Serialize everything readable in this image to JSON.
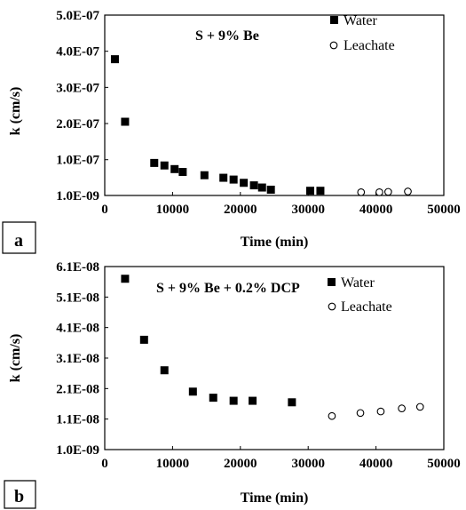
{
  "chart_data": [
    {
      "type": "scatter",
      "panel_label": "a",
      "annotation": "S + 9% Be",
      "xlabel": "Time (min)",
      "ylabel": "k (cm/s)",
      "xlim": [
        0,
        50000
      ],
      "ylim": [
        1e-09,
        5e-07
      ],
      "x_ticks": [
        0,
        10000,
        20000,
        30000,
        40000,
        50000
      ],
      "x_tick_labels": [
        "0",
        "10000",
        "20000",
        "30000",
        "40000",
        "50000"
      ],
      "y_ticks": [
        1e-09,
        1e-07,
        2e-07,
        3e-07,
        4e-07,
        5e-07
      ],
      "y_tick_labels": [
        "1.0E-09",
        "1.0E-07",
        "2.0E-07",
        "3.0E-07",
        "4.0E-07",
        "5.0E-07"
      ],
      "grid": false,
      "legend_position": "top-right",
      "series": [
        {
          "name": "Water",
          "marker": "filled-square",
          "points": [
            [
              1500,
              3.78e-07
            ],
            [
              3000,
              2.05e-07
            ],
            [
              7300,
              9.1e-08
            ],
            [
              8800,
              8.4e-08
            ],
            [
              10300,
              7.4e-08
            ],
            [
              11500,
              6.6e-08
            ],
            [
              14700,
              5.7e-08
            ],
            [
              17500,
              5e-08
            ],
            [
              19000,
              4.5e-08
            ],
            [
              20500,
              3.6e-08
            ],
            [
              22000,
              2.9e-08
            ],
            [
              23200,
              2.3e-08
            ],
            [
              24500,
              1.7e-08
            ],
            [
              30300,
              1.4e-08
            ],
            [
              31800,
              1.4e-08
            ]
          ]
        },
        {
          "name": "Leachate",
          "marker": "open-circle",
          "points": [
            [
              37800,
              1e-08
            ],
            [
              40500,
              1e-08
            ],
            [
              41800,
              1.1e-08
            ],
            [
              44700,
              1.2e-08
            ]
          ]
        }
      ]
    },
    {
      "type": "scatter",
      "panel_label": "b",
      "annotation": "S + 9% Be + 0.2% DCP",
      "xlabel": "Time (min)",
      "ylabel": "k (cm/s)",
      "xlim": [
        0,
        50000
      ],
      "ylim": [
        1e-09,
        6.1e-08
      ],
      "x_ticks": [
        0,
        10000,
        20000,
        30000,
        40000,
        50000
      ],
      "x_tick_labels": [
        "0",
        "10000",
        "20000",
        "30000",
        "40000",
        "50000"
      ],
      "y_ticks": [
        1e-09,
        1.1e-08,
        2.1e-08,
        3.1e-08,
        4.1e-08,
        5.1e-08,
        6.1e-08
      ],
      "y_tick_labels": [
        "1.0E-09",
        "1.1E-08",
        "2.1E-08",
        "3.1E-08",
        "4.1E-08",
        "5.1E-08",
        "6.1E-08"
      ],
      "grid": false,
      "legend_position": "top-right",
      "series": [
        {
          "name": "Water",
          "marker": "filled-square",
          "points": [
            [
              3000,
              5.7e-08
            ],
            [
              5800,
              3.7e-08
            ],
            [
              8800,
              2.7e-08
            ],
            [
              13000,
              2e-08
            ],
            [
              16000,
              1.8e-08
            ],
            [
              19000,
              1.7e-08
            ],
            [
              21800,
              1.7e-08
            ],
            [
              27600,
              1.65e-08
            ]
          ]
        },
        {
          "name": "Leachate",
          "marker": "open-circle",
          "points": [
            [
              33500,
              1.2e-08
            ],
            [
              37700,
              1.3e-08
            ],
            [
              40700,
              1.35e-08
            ],
            [
              43800,
              1.45e-08
            ],
            [
              46500,
              1.5e-08
            ]
          ]
        }
      ]
    }
  ]
}
